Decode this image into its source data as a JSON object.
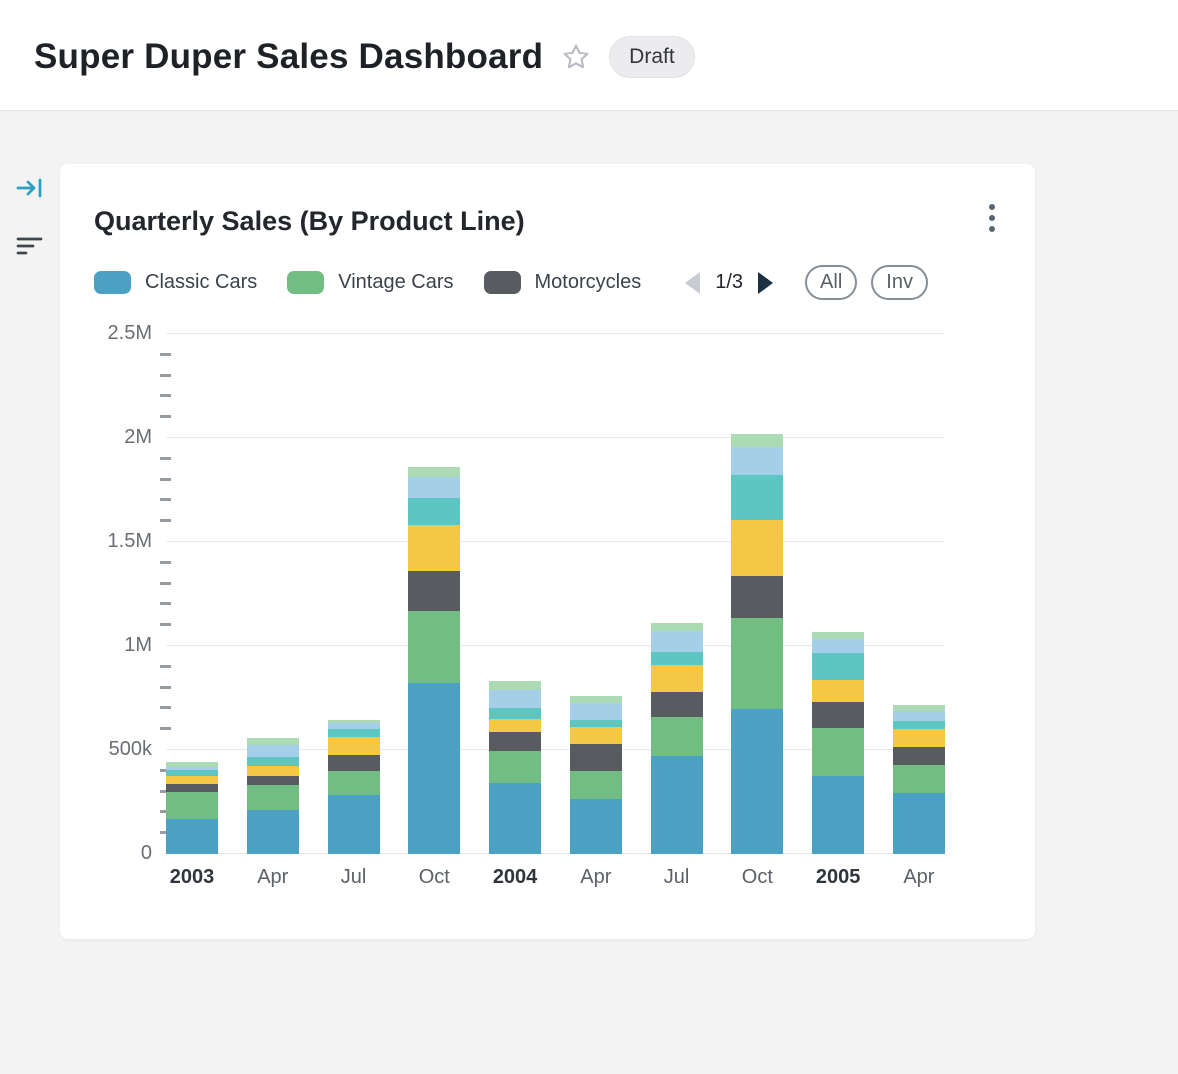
{
  "header": {
    "title": "Super Duper Sales Dashboard",
    "status_badge": "Draft"
  },
  "sidebar": {
    "icons": [
      "collapse-panel-icon",
      "filter-icon"
    ],
    "accent_color": "#2B9FC4"
  },
  "card": {
    "title": "Quarterly Sales (By Product Line)",
    "legend": [
      {
        "label": "Classic Cars",
        "color": "#4AA1C4"
      },
      {
        "label": "Vintage Cars",
        "color": "#72BE82"
      },
      {
        "label": "Motorcycles",
        "color": "#585B60"
      }
    ],
    "pagination": {
      "current": "1/3"
    },
    "buttons": [
      {
        "label": "All"
      },
      {
        "label": "Inv"
      }
    ]
  },
  "chart_data": {
    "type": "bar",
    "subtype": "stacked",
    "title": "Quarterly Sales (By Product Line)",
    "categories": [
      "2003",
      "Apr",
      "Jul",
      "Oct",
      "2004",
      "Apr",
      "Jul",
      "Oct",
      "2005",
      "Apr"
    ],
    "bold_category_indexes": [
      0,
      4,
      8
    ],
    "ylim": [
      0,
      2500000
    ],
    "ytick_interval": 500000,
    "minor_tick_interval": 100000,
    "ytick_labels": [
      "0",
      "500k",
      "1M",
      "1.5M",
      "2M",
      "2.5M"
    ],
    "grid": true,
    "legend_position": "top",
    "series": [
      {
        "name": "Classic Cars",
        "color": "#4AA1C4",
        "values": [
          170000,
          210000,
          285000,
          820000,
          340000,
          265000,
          470000,
          695000,
          375000,
          295000
        ]
      },
      {
        "name": "Vintage Cars",
        "color": "#72BE82",
        "values": [
          130000,
          120000,
          115000,
          350000,
          155000,
          135000,
          190000,
          440000,
          230000,
          135000
        ]
      },
      {
        "name": "Motorcycles",
        "color": "#585B60",
        "values": [
          35000,
          45000,
          75000,
          190000,
          90000,
          130000,
          120000,
          200000,
          125000,
          85000
        ]
      },
      {
        "name": "",
        "color": "#F4C843",
        "values": [
          40000,
          50000,
          90000,
          220000,
          65000,
          80000,
          130000,
          270000,
          105000,
          85000
        ]
      },
      {
        "name": "",
        "color": "#5EC6C2",
        "values": [
          30000,
          40000,
          35000,
          130000,
          50000,
          35000,
          60000,
          215000,
          130000,
          40000
        ]
      },
      {
        "name": "",
        "color": "#A5CEE8",
        "values": [
          15000,
          60000,
          30000,
          105000,
          90000,
          80000,
          100000,
          135000,
          70000,
          50000
        ]
      },
      {
        "name": "",
        "color": "#ACDAB4",
        "values": [
          25000,
          35000,
          15000,
          45000,
          40000,
          35000,
          40000,
          65000,
          35000,
          25000
        ]
      }
    ]
  }
}
